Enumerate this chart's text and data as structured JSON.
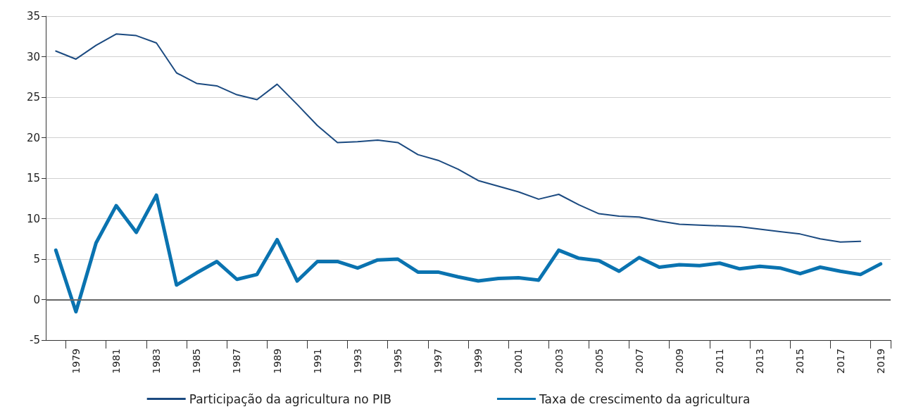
{
  "chart_data": {
    "type": "line",
    "categories": [
      null,
      "1979",
      null,
      "1981",
      null,
      "1983",
      null,
      "1985",
      null,
      "1987",
      null,
      "1989",
      null,
      "1991",
      null,
      "1993",
      null,
      "1995",
      null,
      "1997",
      null,
      "1999",
      null,
      "2001",
      null,
      "2003",
      null,
      "2005",
      null,
      "2007",
      null,
      "2009",
      null,
      "2011",
      null,
      "2013",
      null,
      "2015",
      null,
      "2017",
      null,
      "2019"
    ],
    "series": [
      {
        "name": "Participação da agricultura no PIB",
        "color": "#1b4a80",
        "values": [
          30.7,
          29.7,
          31.4,
          32.8,
          32.6,
          31.7,
          28.0,
          26.7,
          26.4,
          25.3,
          24.7,
          26.6,
          24.1,
          21.5,
          19.4,
          19.5,
          19.7,
          19.4,
          17.9,
          17.2,
          16.1,
          14.7,
          14.0,
          13.3,
          12.4,
          13.0,
          11.7,
          10.6,
          10.3,
          10.2,
          9.7,
          9.3,
          9.2,
          9.1,
          9.0,
          8.7,
          8.4,
          8.1,
          7.5,
          7.1,
          7.2,
          null
        ]
      },
      {
        "name": "Taxa de crescimento da agricultura",
        "color": "#0a73b0",
        "values": [
          6.1,
          -1.5,
          7.0,
          11.6,
          8.3,
          12.9,
          1.8,
          3.3,
          4.7,
          2.5,
          3.1,
          7.4,
          2.3,
          4.7,
          4.7,
          3.9,
          4.9,
          5.0,
          3.4,
          3.4,
          2.8,
          2.3,
          2.6,
          2.7,
          2.4,
          6.1,
          5.1,
          4.8,
          3.5,
          5.2,
          4.0,
          4.3,
          4.2,
          4.5,
          3.8,
          4.1,
          3.9,
          3.2,
          4.0,
          3.5,
          3.1,
          4.4
        ]
      }
    ],
    "ylim": [
      -5,
      35
    ],
    "yticks": [
      -5,
      0,
      5,
      10,
      15,
      20,
      25,
      30,
      35
    ],
    "ref_lines": [
      {
        "axis": "y",
        "value": 0,
        "color": "#666666"
      }
    ],
    "grid": "y",
    "legend": "bottom",
    "marker": "none",
    "line_style": "solid"
  }
}
